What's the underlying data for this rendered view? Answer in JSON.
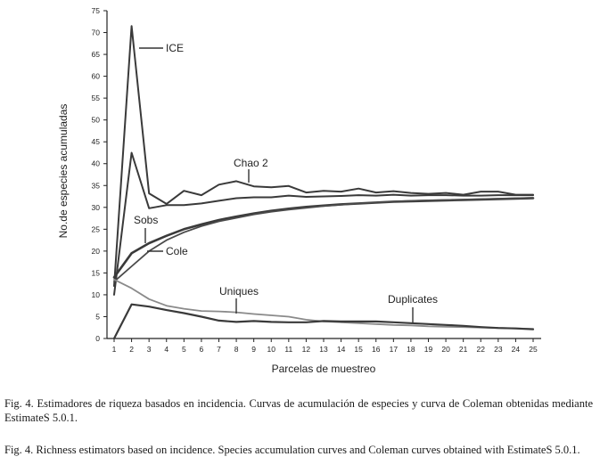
{
  "chart_data": {
    "type": "line",
    "title": "",
    "xlabel": "Parcelas de muestreo",
    "ylabel": "No.de especies acumuladas",
    "xlim": [
      1,
      25
    ],
    "ylim": [
      0,
      75
    ],
    "x_ticks": [
      1,
      2,
      3,
      4,
      5,
      6,
      7,
      8,
      9,
      10,
      11,
      12,
      13,
      14,
      15,
      16,
      17,
      18,
      19,
      20,
      21,
      22,
      23,
      24,
      25
    ],
    "y_ticks": [
      0,
      5,
      10,
      15,
      20,
      25,
      30,
      35,
      40,
      45,
      50,
      55,
      60,
      65,
      70,
      75
    ],
    "grid": false,
    "legend": "none",
    "x": [
      1,
      2,
      3,
      4,
      5,
      6,
      7,
      8,
      9,
      10,
      11,
      12,
      13,
      14,
      15,
      16,
      17,
      18,
      19,
      20,
      21,
      22,
      23,
      24,
      25
    ],
    "series": [
      {
        "name": "ICE",
        "color": "#3a3a3a",
        "values": [
          12,
          71.5,
          33.2,
          30.8,
          33.8,
          32.8,
          35.2,
          36,
          34.8,
          34.6,
          34.9,
          33.4,
          33.8,
          33.6,
          34.3,
          33.4,
          33.7,
          33.3,
          33.1,
          33.3,
          32.9,
          33.6,
          33.6,
          32.9,
          32.9
        ]
      },
      {
        "name": "Chao 2",
        "color": "#3a3a3a",
        "values": [
          10,
          42.5,
          29.8,
          30.5,
          30.5,
          30.9,
          31.5,
          32.1,
          32.3,
          32.3,
          32.7,
          32.4,
          32.5,
          32.6,
          32.8,
          32.7,
          32.9,
          32.7,
          32.8,
          32.8,
          32.7,
          32.7,
          32.8,
          32.8,
          32.8
        ]
      },
      {
        "name": "Sobs",
        "color": "#3a3a3a",
        "values": [
          14,
          19.5,
          21.8,
          23.5,
          25,
          26.1,
          27.1,
          27.9,
          28.6,
          29.2,
          29.7,
          30.1,
          30.4,
          30.7,
          30.9,
          31.1,
          31.3,
          31.4,
          31.5,
          31.6,
          31.7,
          31.8,
          31.9,
          32,
          32.1
        ]
      },
      {
        "name": "Cole",
        "color": "#4a4a4a",
        "values": [
          13,
          16.5,
          20,
          22.5,
          24.3,
          25.7,
          26.8,
          27.6,
          28.4,
          29,
          29.5,
          29.9,
          30.3,
          30.6,
          30.9,
          31.1,
          31.3,
          31.5,
          31.6,
          31.7,
          31.8,
          31.9,
          32,
          32.1,
          32.2
        ]
      },
      {
        "name": "Uniques",
        "color": "#8a8a8a",
        "values": [
          13.5,
          11.5,
          9,
          7.5,
          6.8,
          6.3,
          6.2,
          6,
          5.6,
          5.3,
          5,
          4.3,
          3.9,
          3.7,
          3.5,
          3.3,
          3.1,
          3,
          2.8,
          2.7,
          2.6,
          2.5,
          2.4,
          2.3,
          2.2
        ]
      },
      {
        "name": "Duplicates",
        "color": "#3a3a3a",
        "values": [
          0,
          7.8,
          7.3,
          6.5,
          5.8,
          5,
          4.1,
          3.8,
          4,
          3.8,
          3.7,
          3.7,
          4,
          3.9,
          3.9,
          3.9,
          3.7,
          3.5,
          3.3,
          3.1,
          2.9,
          2.6,
          2.4,
          2.3,
          2.1
        ]
      }
    ],
    "annotations": [
      {
        "text": "ICE",
        "series": "ICE"
      },
      {
        "text": "Chao 2",
        "series": "Chao 2"
      },
      {
        "text": "Sobs",
        "series": "Sobs"
      },
      {
        "text": "Cole",
        "series": "Cole"
      },
      {
        "text": "Uniques",
        "series": "Uniques"
      },
      {
        "text": "Duplicates",
        "series": "Duplicates"
      }
    ]
  },
  "captions": {
    "es": "Fig. 4. Estimadores de riqueza basados en incidencia. Curvas de acumulación de especies y curva de Coleman obtenidas mediante EstimateS 5.0.1.",
    "en": "Fig. 4. Richness estimators based on incidence. Species accumulation curves and Coleman curves obtained with EstimateS 5.0.1."
  }
}
